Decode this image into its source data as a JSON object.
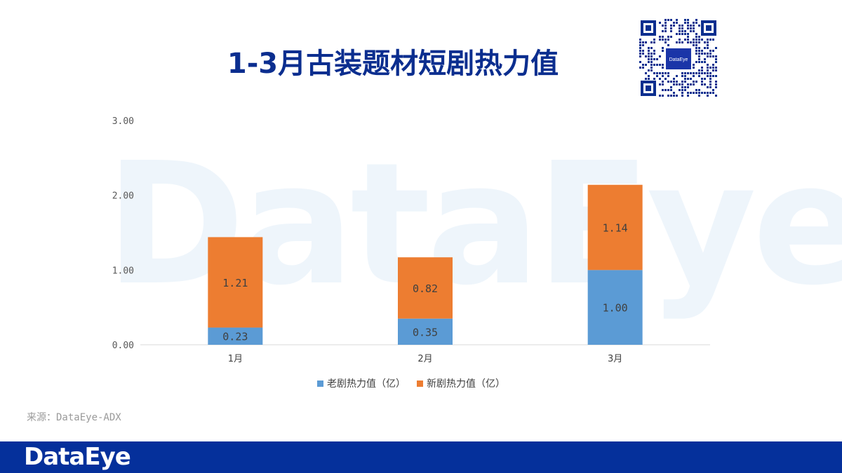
{
  "page": {
    "title": "1-3月古装题材短剧热力值",
    "source": "来源：DataEye-ADX",
    "footer_brand": "DataEye",
    "qr_brand": "DataEye",
    "watermark": "DataEye"
  },
  "colors": {
    "series_old": "#5b9bd5",
    "series_new": "#ed7d31",
    "title": "#0b2e8f",
    "footer": "#05309b"
  },
  "chart_data": {
    "type": "bar",
    "stacked": true,
    "title": "1-3月古装题材短剧热力值",
    "categories": [
      "1月",
      "2月",
      "3月"
    ],
    "series": [
      {
        "name": "老剧热力值（亿）",
        "values": [
          0.23,
          0.35,
          1.0
        ],
        "labels": [
          "0.23",
          "0.35",
          "1.00"
        ]
      },
      {
        "name": "新剧热力值（亿）",
        "values": [
          1.21,
          0.82,
          1.14
        ],
        "labels": [
          "1.21",
          "0.82",
          "1.14"
        ]
      }
    ],
    "ylim": [
      0,
      3
    ],
    "yticks": [
      0,
      1,
      2,
      3
    ],
    "ytick_labels": [
      "0.00",
      "1.00",
      "2.00",
      "3.00"
    ],
    "xlabel": "",
    "ylabel": "",
    "grid": false,
    "legend_position": "bottom"
  }
}
